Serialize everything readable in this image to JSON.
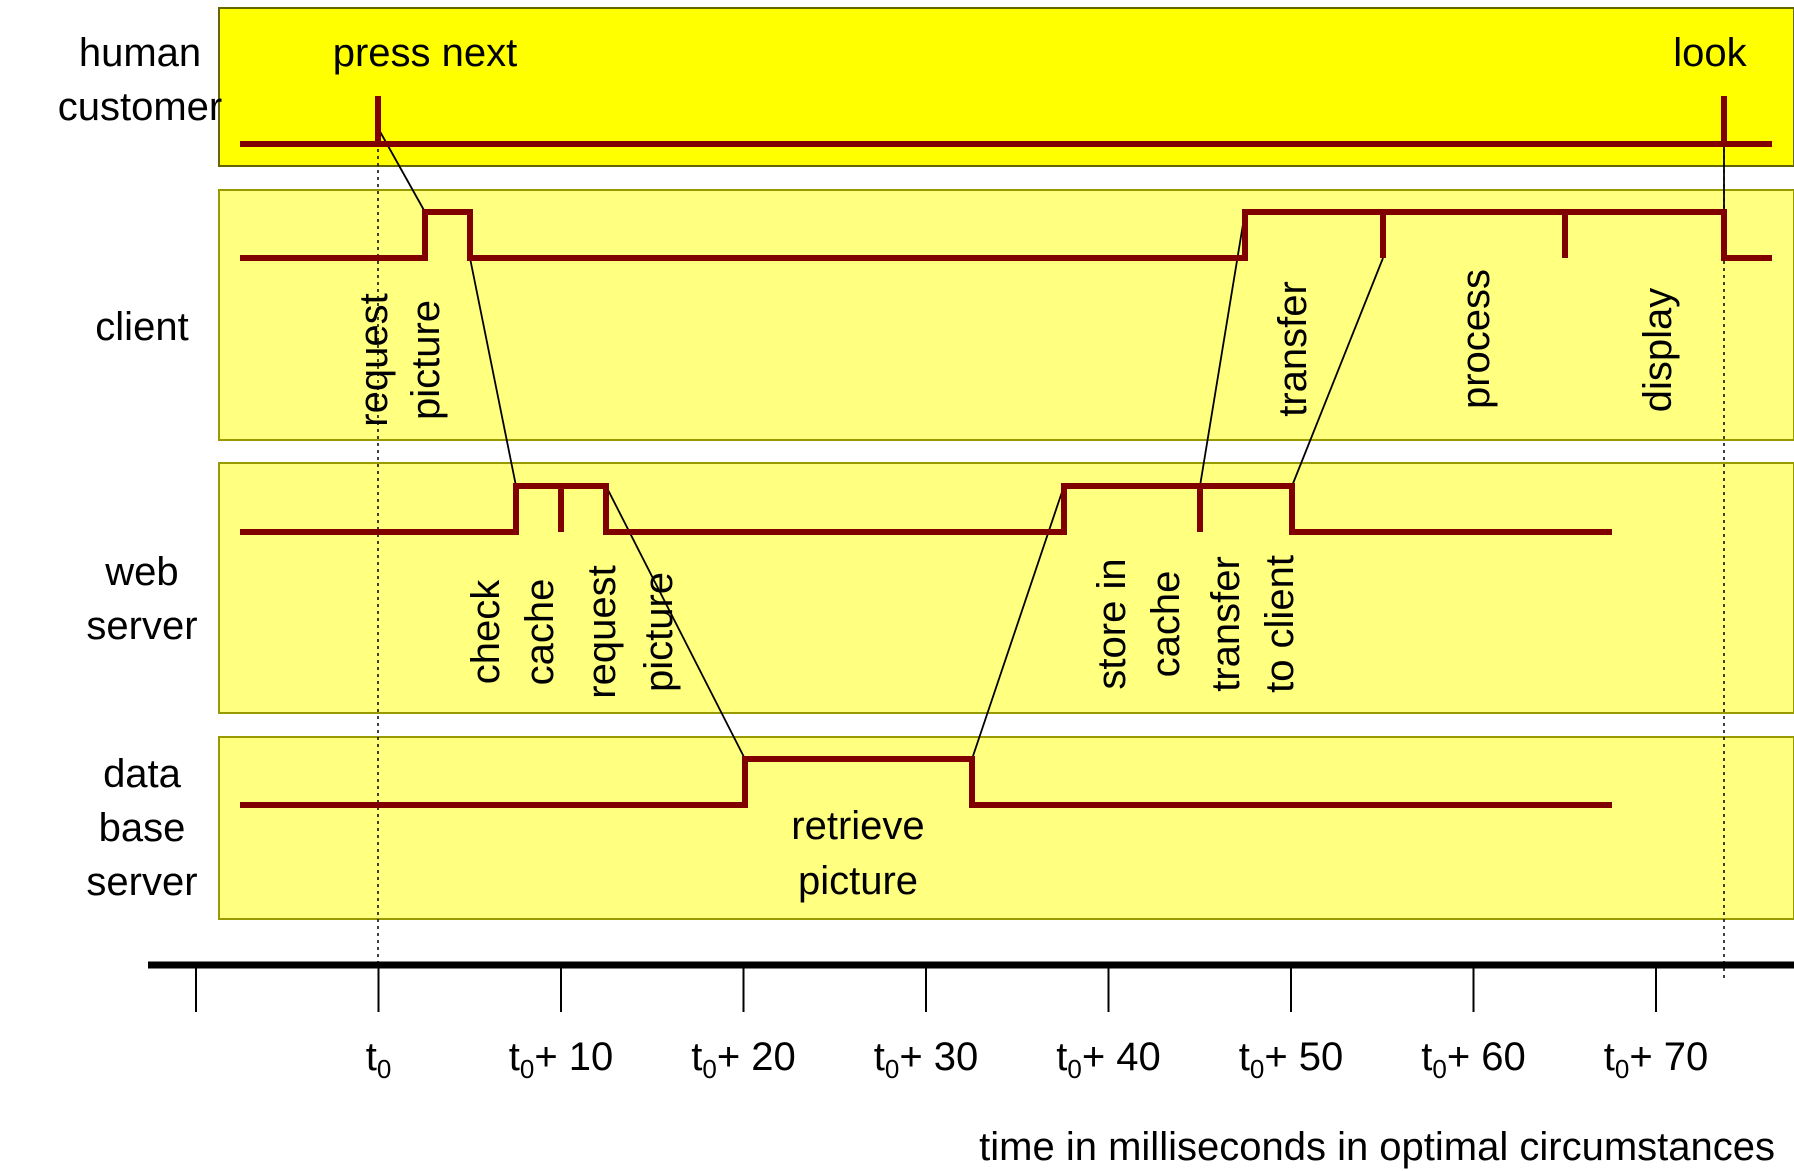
{
  "lanes": {
    "human": {
      "line1": "human",
      "line2": "customer",
      "fill": "#ffff00"
    },
    "client": {
      "line1": "client",
      "fill": "#ffff80"
    },
    "web": {
      "line1": "web",
      "line2": "server",
      "fill": "#ffff80"
    },
    "db": {
      "line1": "data",
      "line2": "base",
      "line3": "server",
      "fill": "#ffff80"
    }
  },
  "annotations": {
    "press_next": "press next",
    "look": "look",
    "request": "request",
    "picture": "picture",
    "transfer": "transfer",
    "process": "process",
    "display": "display",
    "check": "check",
    "cache": "cache",
    "ws_request": "request",
    "ws_picture": "picture",
    "store_in": "store in",
    "store_cache": "cache",
    "transfer2": "transfer",
    "to_client": "to client",
    "retrieve": "retrieve",
    "retrieve_picture": "picture"
  },
  "axis": {
    "t_base": "t",
    "t_sub": "0",
    "ticks": [
      "",
      "",
      "+ 10",
      "+ 20",
      "+ 30",
      "+ 40",
      "+ 50",
      "+ 60",
      "+ 70"
    ],
    "label": "time in milliseconds in optimal circumstances"
  },
  "colors": {
    "signal": "#800000",
    "lane_border": "#999900",
    "axis": "#000000"
  }
}
